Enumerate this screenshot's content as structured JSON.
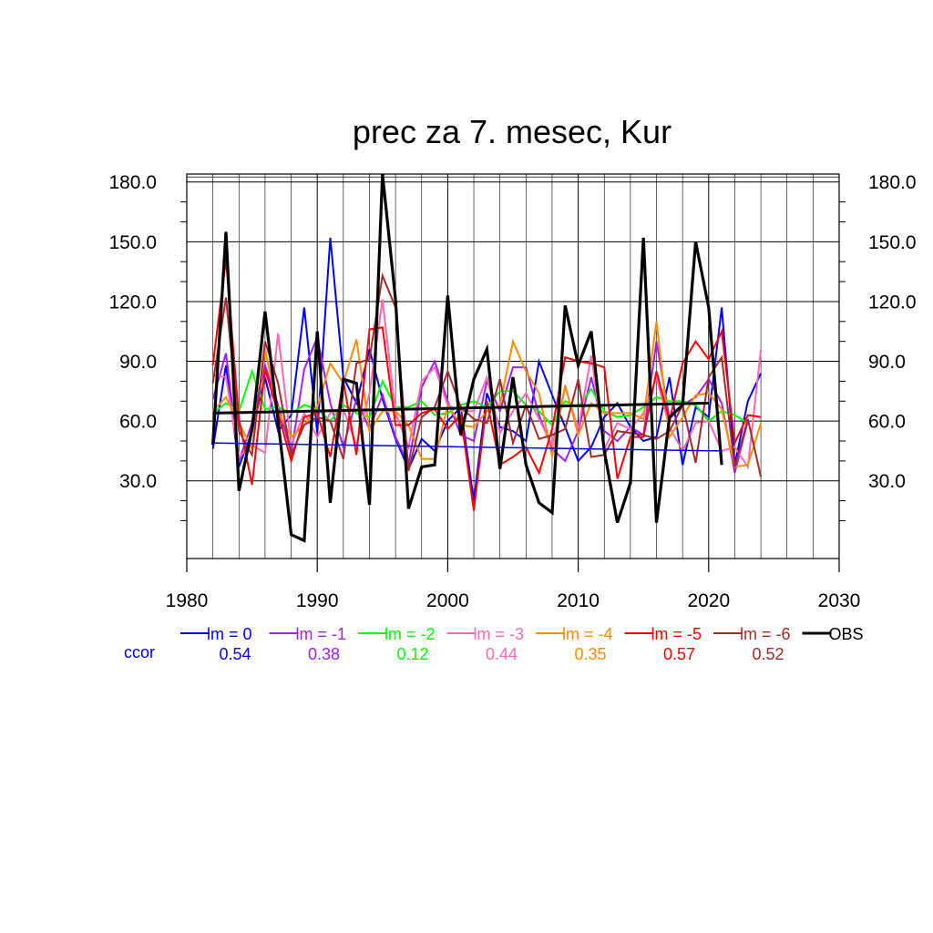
{
  "chart_data": {
    "type": "line",
    "title": "prec za 7. mesec, Kur",
    "xlim": [
      1980,
      2030
    ],
    "ylim": [
      -9,
      184
    ],
    "x_ticks": [
      "1980",
      "1990",
      "2000",
      "2010",
      "2020",
      "2030"
    ],
    "y_ticks": [
      "30.0",
      "60.0",
      "90.0",
      "120.0",
      "150.0",
      "180.0"
    ],
    "grid": true,
    "legend_position": "bottom",
    "ccor_label": "ccor",
    "series": [
      {
        "name": "lm = 0",
        "color": "#0000ff",
        "ccor": "0.54",
        "x_start": 1982,
        "values": [
          46,
          88,
          37,
          55,
          82,
          55,
          63,
          117,
          54,
          152,
          82,
          69,
          96,
          71,
          51,
          36,
          51,
          45,
          60,
          67,
          20,
          74,
          57,
          55,
          50,
          90,
          73,
          57,
          40,
          47,
          62,
          69,
          57,
          50,
          52,
          82,
          38,
          67,
          62,
          117,
          38,
          70,
          84
        ],
        "trend": [
          [
            1982,
            49
          ],
          [
            2021,
            45
          ]
        ]
      },
      {
        "name": "lm = -1",
        "color": "#a020f0",
        "ccor": "0.38",
        "x_start": 1982,
        "values": [
          71,
          94,
          40,
          59,
          88,
          68,
          44,
          86,
          102,
          69,
          47,
          71,
          56,
          73,
          52,
          38,
          77,
          90,
          70,
          53,
          50,
          80,
          65,
          87,
          87,
          63,
          46,
          40,
          55,
          82,
          55,
          50,
          57,
          53,
          100,
          61,
          68,
          72,
          81,
          69,
          34,
          60
        ],
        "trend": null
      },
      {
        "name": "lm = -2",
        "color": "#00ff00",
        "ccor": "0.12",
        "x_start": 1982,
        "values": [
          64,
          69,
          65,
          85,
          66,
          67,
          64,
          68,
          66,
          60,
          68,
          64,
          62,
          80,
          67,
          67,
          70,
          63,
          64,
          68,
          70,
          67,
          75,
          75,
          68,
          65,
          58,
          70,
          67,
          76,
          65,
          62,
          63,
          67,
          72,
          70,
          70,
          68,
          60,
          65,
          63,
          59
        ],
        "trend": null
      },
      {
        "name": "lm = -3",
        "color": "#ff69b4",
        "ccor": "0.44",
        "x_start": 1982,
        "values": [
          83,
          82,
          42,
          48,
          44,
          104,
          48,
          64,
          52,
          64,
          66,
          48,
          74,
          121,
          64,
          47,
          80,
          87,
          68,
          65,
          65,
          82,
          54,
          65,
          74,
          61,
          48,
          77,
          56,
          93,
          46,
          59,
          56,
          64,
          82,
          57,
          45,
          59,
          60,
          45,
          47,
          37,
          96
        ],
        "trend": null
      },
      {
        "name": "lm = -4",
        "color": "#ff8c00",
        "ccor": "0.35",
        "x_start": 1982,
        "values": [
          65,
          72,
          59,
          46,
          96,
          65,
          52,
          58,
          67,
          89,
          79,
          101,
          55,
          65,
          65,
          58,
          41,
          41,
          68,
          58,
          57,
          65,
          68,
          100,
          85,
          74,
          42,
          78,
          53,
          69,
          64,
          64,
          64,
          61,
          110,
          52,
          62,
          73,
          74,
          66,
          37,
          38,
          59
        ],
        "trend": null
      },
      {
        "name": "lm = -5",
        "color": "#ff0000",
        "ccor": "0.57",
        "x_start": 1982,
        "values": [
          88,
          141,
          61,
          28,
          86,
          64,
          40,
          62,
          64,
          42,
          80,
          43,
          106,
          107,
          58,
          58,
          64,
          66,
          56,
          63,
          15,
          70,
          38,
          42,
          47,
          34,
          56,
          92,
          90,
          89,
          87,
          31,
          52,
          52,
          85,
          60,
          89,
          100,
          91,
          105,
          49,
          63,
          62
        ],
        "trend": null
      },
      {
        "name": "lm = -6",
        "color": "#a52a2a",
        "ccor": "0.52",
        "x_start": 1982,
        "values": [
          79,
          122,
          55,
          43,
          100,
          79,
          43,
          58,
          62,
          60,
          41,
          89,
          91,
          133,
          117,
          35,
          62,
          67,
          85,
          67,
          61,
          59,
          81,
          49,
          68,
          51,
          53,
          56,
          81,
          42,
          43,
          55,
          54,
          53,
          51,
          55,
          68,
          39,
          82,
          92,
          37,
          61,
          32
        ],
        "trend": null
      },
      {
        "name": "OBS",
        "color": "#000000",
        "ccor": "",
        "x_start": 1982,
        "values": [
          48,
          155,
          25,
          56,
          115,
          60,
          3,
          0,
          105,
          19,
          81,
          79,
          18,
          184,
          121,
          16,
          37,
          38,
          123,
          53,
          81,
          96,
          36,
          82,
          38,
          19,
          14,
          118,
          88,
          105,
          45,
          9,
          29,
          152,
          9,
          62,
          68,
          150,
          117,
          38
        ],
        "trend": [
          [
            1982,
            64
          ],
          [
            2020,
            69
          ]
        ]
      }
    ]
  }
}
